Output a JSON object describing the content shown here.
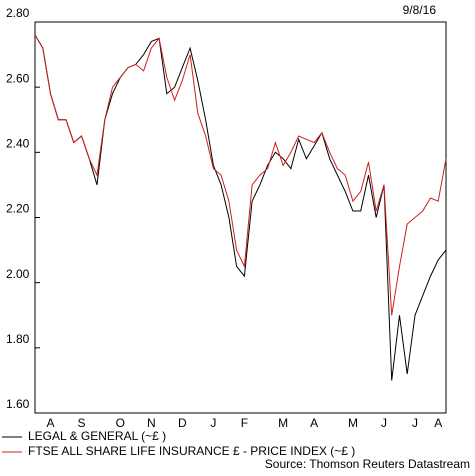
{
  "chart_data": {
    "type": "line",
    "date": "9/8/16",
    "source": "Source: Thomson Reuters Datastream",
    "categories": [
      null,
      null,
      "A",
      null,
      null,
      null,
      "S",
      null,
      null,
      null,
      null,
      "O",
      null,
      null,
      null,
      "N",
      null,
      null,
      null,
      "D",
      null,
      null,
      null,
      "J",
      null,
      null,
      null,
      "F",
      null,
      null,
      null,
      null,
      "M",
      null,
      null,
      null,
      "A",
      null,
      null,
      null,
      null,
      "M",
      null,
      null,
      null,
      "J",
      null,
      null,
      null,
      "J",
      null,
      null,
      "A",
      null
    ],
    "series": [
      {
        "name": "LEGAL & GENERAL (~£ )",
        "color": "#000000",
        "values": [
          2.76,
          2.72,
          2.58,
          2.5,
          2.5,
          2.43,
          2.45,
          2.38,
          2.3,
          2.5,
          2.58,
          2.63,
          2.66,
          2.67,
          2.7,
          2.74,
          2.75,
          2.58,
          2.6,
          2.66,
          2.72,
          2.62,
          2.5,
          2.36,
          2.3,
          2.2,
          2.05,
          2.02,
          2.25,
          2.3,
          2.36,
          2.4,
          2.38,
          2.35,
          2.44,
          2.38,
          2.42,
          2.46,
          2.38,
          2.33,
          2.28,
          2.22,
          2.22,
          2.33,
          2.2,
          2.3,
          1.7,
          1.9,
          1.72,
          1.9,
          1.96,
          2.02,
          2.07,
          2.1
        ]
      },
      {
        "name": "FTSE ALL SHARE LIFE INSURANCE £ - PRICE INDEX (~£ )",
        "color": "#cc1f1f",
        "values": [
          2.76,
          2.72,
          2.58,
          2.5,
          2.5,
          2.43,
          2.45,
          2.38,
          2.33,
          2.5,
          2.6,
          2.63,
          2.66,
          2.67,
          2.65,
          2.72,
          2.75,
          2.63,
          2.56,
          2.62,
          2.7,
          2.52,
          2.45,
          2.35,
          2.33,
          2.25,
          2.1,
          2.05,
          2.3,
          2.33,
          2.35,
          2.43,
          2.36,
          2.4,
          2.45,
          2.44,
          2.43,
          2.46,
          2.4,
          2.35,
          2.33,
          2.25,
          2.28,
          2.37,
          2.22,
          2.3,
          1.9,
          2.05,
          2.18,
          2.2,
          2.22,
          2.26,
          2.25,
          2.38
        ]
      }
    ],
    "ylim": [
      1.6,
      2.8
    ],
    "yticks": [
      {
        "value": 1.6,
        "label": "1.60"
      },
      {
        "value": 1.8,
        "label": "1.80"
      },
      {
        "value": 2.0,
        "label": "2.00"
      },
      {
        "value": 2.2,
        "label": "2.20"
      },
      {
        "value": 2.4,
        "label": "2.40"
      },
      {
        "value": 2.6,
        "label": "2.60"
      },
      {
        "value": 2.8,
        "label": "2.80"
      }
    ]
  }
}
